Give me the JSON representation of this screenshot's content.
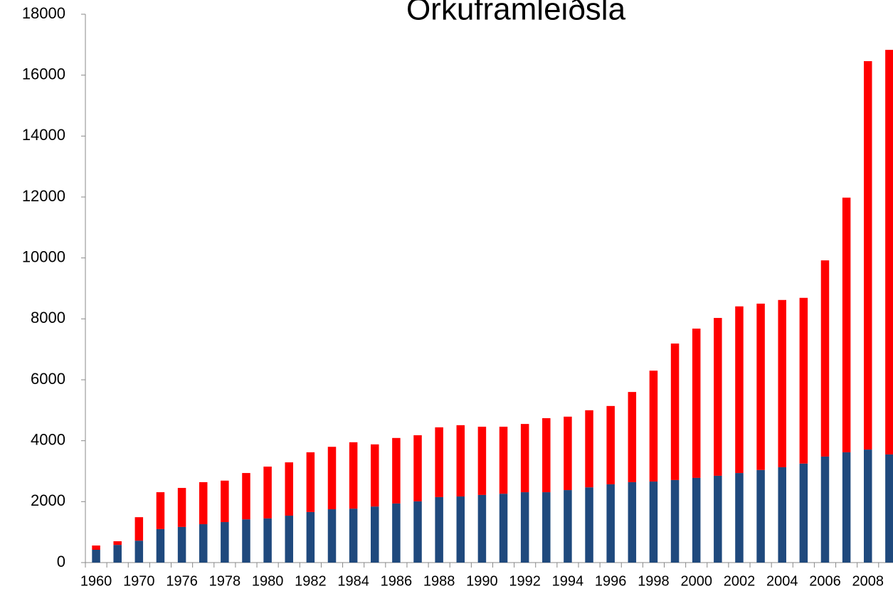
{
  "chart_data": {
    "type": "stacked_bar",
    "title": "Orkuframleiðsla",
    "categories": [
      "1960",
      null,
      "1970",
      null,
      "1976",
      null,
      "1978",
      null,
      "1980",
      null,
      "1982",
      null,
      "1984",
      null,
      "1986",
      null,
      "1988",
      null,
      "1990",
      null,
      "1992",
      null,
      "1994",
      null,
      "1996",
      null,
      "1998",
      null,
      "2000",
      null,
      "2002",
      null,
      "2004",
      null,
      "2006",
      null,
      "2008",
      null
    ],
    "series": [
      {
        "color": "#1f497d",
        "values": [
          420,
          580,
          720,
          1100,
          1170,
          1260,
          1330,
          1420,
          1450,
          1540,
          1660,
          1750,
          1770,
          1840,
          1940,
          2010,
          2150,
          2170,
          2220,
          2260,
          2310,
          2310,
          2380,
          2470,
          2570,
          2640,
          2660,
          2710,
          2780,
          2850,
          2940,
          3040,
          3130,
          3250,
          3480,
          3620,
          3710,
          3550
        ]
      },
      {
        "color": "#ff0000",
        "values": [
          140,
          120,
          770,
          1210,
          1280,
          1380,
          1360,
          1520,
          1700,
          1750,
          1960,
          2050,
          2180,
          2040,
          2150,
          2170,
          2290,
          2340,
          2240,
          2200,
          2240,
          2430,
          2410,
          2530,
          2570,
          2960,
          3640,
          4480,
          4900,
          5180,
          5470,
          5460,
          5490,
          5440,
          6440,
          8360,
          12750,
          13280
        ]
      }
    ],
    "ylim": [
      0,
      18000
    ],
    "yticks": [
      0,
      2000,
      4000,
      6000,
      8000,
      10000,
      12000,
      14000,
      16000,
      18000
    ],
    "grid": false
  }
}
